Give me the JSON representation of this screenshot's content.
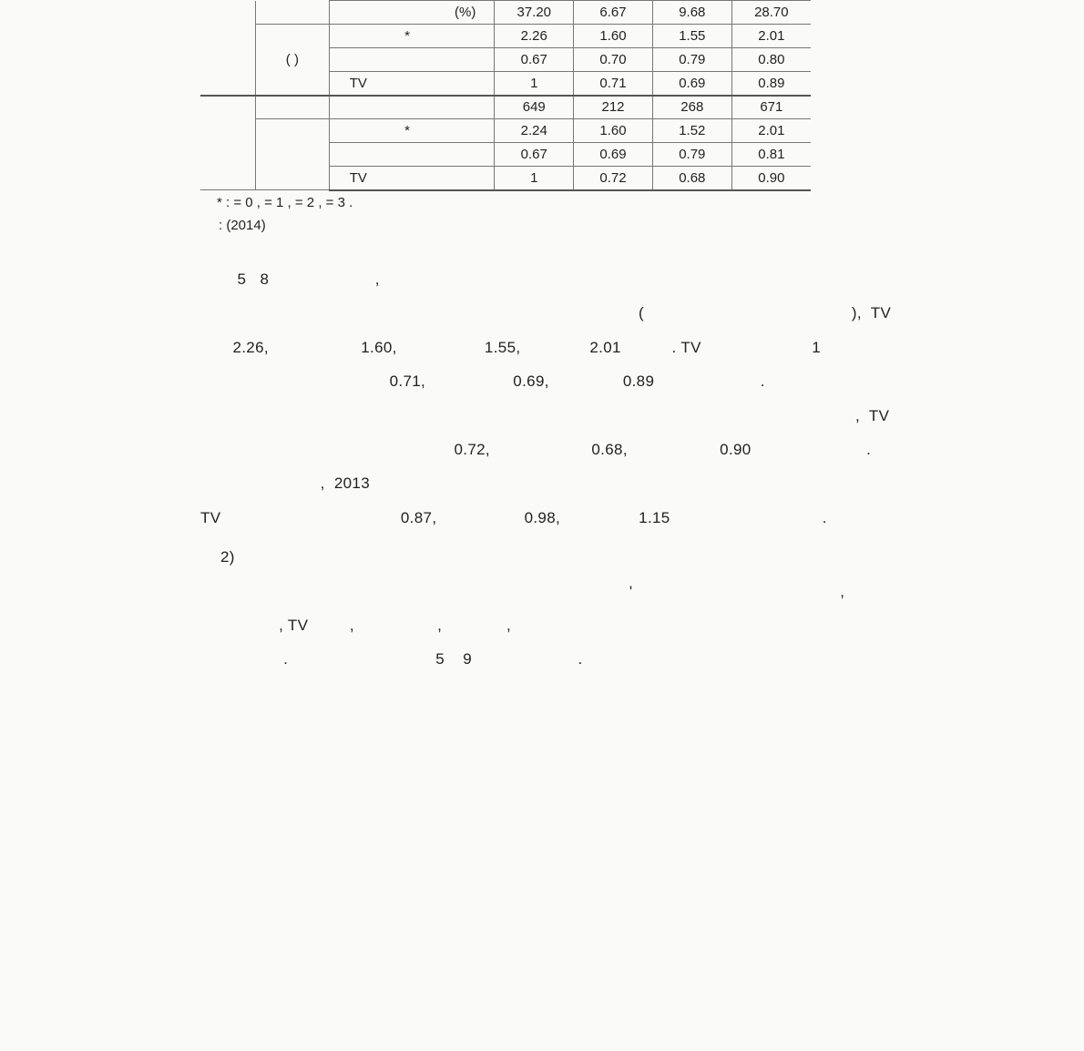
{
  "table": {
    "rows": [
      {
        "c0": null,
        "c1": null,
        "c2": "(%)",
        "v": [
          "37.20",
          "6.67",
          "9.68",
          "28.70"
        ]
      },
      {
        "c0": null,
        "c1": "(          )",
        "c1rowspan": 3,
        "c2": "*",
        "v": [
          "2.26",
          "1.60",
          "1.55",
          "2.01"
        ]
      },
      {
        "c2": "",
        "v": [
          "0.67",
          "0.70",
          "0.79",
          "0.80"
        ]
      },
      {
        "c2": "TV",
        "v": [
          "1",
          "0.71",
          "0.69",
          "0.89"
        ]
      },
      {
        "sep": "top",
        "c0": "",
        "c0rowspan": 4,
        "c1": "",
        "c2": "",
        "v": [
          "649",
          "212",
          "268",
          "671"
        ]
      },
      {
        "c1": "",
        "c1rowspan": 3,
        "c2": "*",
        "v": [
          "2.24",
          "1.60",
          "1.52",
          "2.01"
        ]
      },
      {
        "c2": "",
        "v": [
          "0.67",
          "0.69",
          "0.79",
          "0.81"
        ]
      },
      {
        "sep": "bot",
        "c2": "TV",
        "v": [
          "1",
          "0.72",
          "0.68",
          "0.90"
        ]
      }
    ]
  },
  "note": "* :                          = 0   ,                          = 1   ,                    = 2   ,              = 3                                                                                                    .",
  "source": ":                           (2014)",
  "paragraphs": [
    "        5   8                       ,",
    "                                                                                               (                                             ),  TV",
    "       2.26,                    1.60,                   1.55,               2.01           . TV                        1",
    "                                         0.71,                   0.69,                0.89                       .",
    "                                                                                                                                              ,  TV",
    "                                                       0.72,                      0.68,                    0.90                         .",
    "                          ,  2013",
    "TV                                       0.87,                   0.98,                 1.15                                 .",
    "2)",
    "                                                                                             '                                             ,",
    "                 , TV         ,                  ,              ,",
    "",
    "                  .                                5    9                       ."
  ]
}
